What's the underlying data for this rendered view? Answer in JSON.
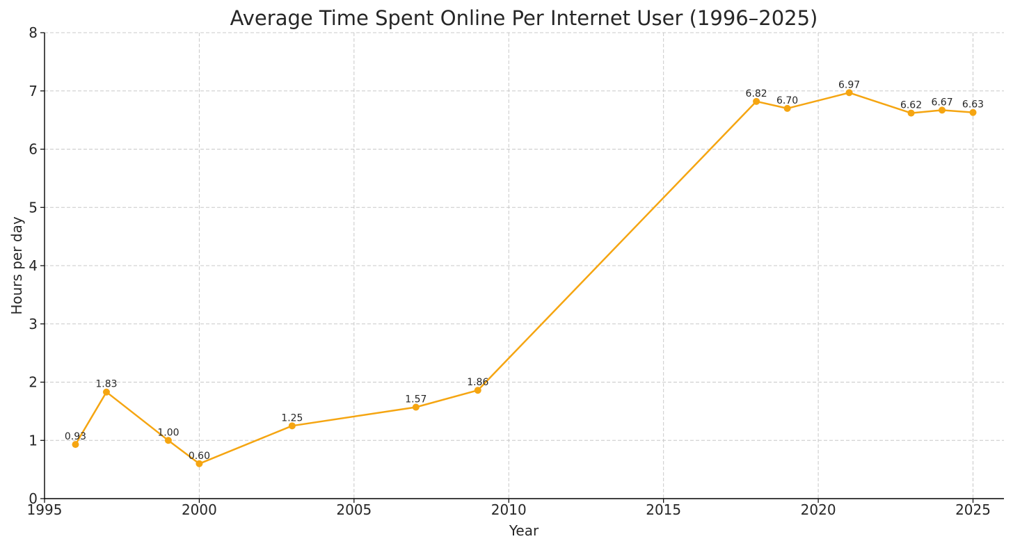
{
  "chart_data": {
    "type": "line",
    "title": "Average Time Spent Online Per Internet User (1996–2025)",
    "xlabel": "Year",
    "ylabel": "Hours per day",
    "xlim": [
      1995,
      2026
    ],
    "ylim": [
      0,
      8
    ],
    "xticks": [
      1995,
      2000,
      2005,
      2010,
      2015,
      2020,
      2025
    ],
    "yticks": [
      0,
      1,
      2,
      3,
      4,
      5,
      6,
      7,
      8
    ],
    "grid": true,
    "series": [
      {
        "color": "#f5a511",
        "x": [
          1996,
          1997,
          1999,
          2000,
          2003,
          2007,
          2009,
          2018,
          2019,
          2021,
          2023,
          2024,
          2025
        ],
        "y": [
          0.93,
          1.83,
          1.0,
          0.6,
          1.25,
          1.57,
          1.86,
          6.82,
          6.7,
          6.97,
          6.62,
          6.67,
          6.63
        ],
        "labels": [
          "0.93",
          "1.83",
          "1.00",
          "0.60",
          "1.25",
          "1.57",
          "1.86",
          "6.82",
          "6.70",
          "6.97",
          "6.62",
          "6.67",
          "6.63"
        ]
      }
    ]
  }
}
